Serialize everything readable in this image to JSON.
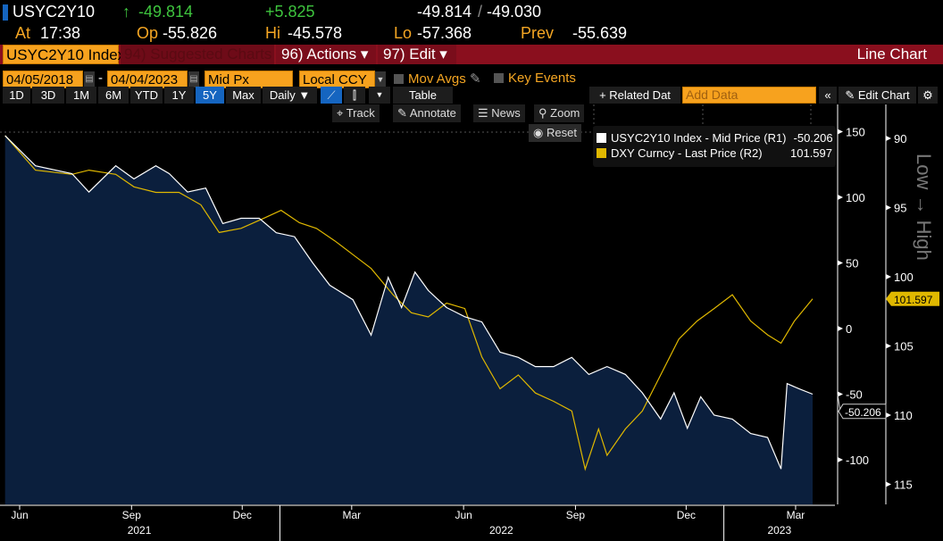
{
  "quote": {
    "ticker": "USYC2Y10",
    "arrow": "↑",
    "last": "-49.814",
    "change": "+5.825",
    "bid": "-49.814",
    "sep": "/",
    "ask": "-49.030",
    "at_label": "At",
    "time": "17:38",
    "op_label": "Op",
    "open": "-55.826",
    "hi_label": "Hi",
    "high": "-45.578",
    "lo_label": "Lo",
    "low": "-57.368",
    "prev_label": "Prev",
    "prev": "-55.639"
  },
  "menu": {
    "security": "USYC2Y10 Index",
    "suggested": "94) Suggested Charts",
    "actions": "96) Actions ▾",
    "edit": "97) Edit ▾",
    "title": "Line Chart"
  },
  "settings": {
    "start_date": "04/05/2018",
    "dash": "-",
    "end_date": "04/04/2023",
    "price": "Mid Px",
    "currency": "Local CCY",
    "mov_avgs": "Mov Avgs",
    "key_events": "Key Events"
  },
  "ranges": [
    "1D",
    "3D",
    "1M",
    "6M",
    "YTD",
    "1Y",
    "5Y",
    "Max"
  ],
  "selected_range": "5Y",
  "period": "Daily ▼",
  "table_label": "Table",
  "related": "+ Related Dat",
  "add_data_placeholder": "Add Data",
  "edit_chart": "✎ Edit Chart",
  "chart_tools": {
    "track": "Track",
    "annotate": "Annotate",
    "news": "News",
    "zoom": "Zoom",
    "reset": "Reset"
  },
  "chart_data": {
    "type": "line",
    "legend": [
      {
        "name": "USYC2Y10 Index - Mid Price (R1)",
        "value": "-50.206",
        "color": "#ffffff"
      },
      {
        "name": "DXY Curncy - Last Price (R2)",
        "value": "101.597",
        "color": "#e0b800"
      }
    ],
    "legend_placement": "top-right",
    "r1_axis": {
      "ticks": [
        "150",
        "100",
        "50",
        "0",
        "-50",
        "-100"
      ],
      "range": [
        -125,
        155
      ]
    },
    "r2_axis": {
      "ticks": [
        "90",
        "95",
        "100",
        "105",
        "110",
        "115"
      ],
      "range": [
        89.5,
        116.5
      ],
      "inverted": true,
      "label": "Low → High"
    },
    "x_ticks": [
      "Jun",
      "Sep",
      "Dec",
      "Mar",
      "Jun",
      "Sep",
      "Dec",
      "Mar"
    ],
    "x_years": [
      "2021",
      "2022",
      "2023"
    ],
    "colors": {
      "area": "#0b1f3d",
      "white": "#ffffff",
      "dxy": "#e0b800"
    },
    "series": [
      {
        "name": "USYC2Y10 Index - Mid Price (R1)",
        "points": [
          [
            "2021-05-20",
            147
          ],
          [
            "2021-06-14",
            124
          ],
          [
            "2021-07-14",
            118
          ],
          [
            "2021-07-28",
            104
          ],
          [
            "2021-08-19",
            124
          ],
          [
            "2021-09-03",
            114
          ],
          [
            "2021-09-21",
            124
          ],
          [
            "2021-10-02",
            118
          ],
          [
            "2021-10-17",
            104
          ],
          [
            "2021-11-01",
            107
          ],
          [
            "2021-11-15",
            80
          ],
          [
            "2021-11-30",
            84
          ],
          [
            "2021-12-15",
            84
          ],
          [
            "2021-12-29",
            73
          ],
          [
            "2022-01-13",
            70
          ],
          [
            "2022-01-28",
            50
          ],
          [
            "2022-02-11",
            33
          ],
          [
            "2022-03-02",
            22
          ],
          [
            "2022-03-17",
            -5
          ],
          [
            "2022-03-31",
            39
          ],
          [
            "2022-04-11",
            16
          ],
          [
            "2022-04-22",
            43
          ],
          [
            "2022-05-03",
            29
          ],
          [
            "2022-05-18",
            16
          ],
          [
            "2022-06-02",
            9
          ],
          [
            "2022-06-16",
            5
          ],
          [
            "2022-07-01",
            -18
          ],
          [
            "2022-07-16",
            -22
          ],
          [
            "2022-07-30",
            -29
          ],
          [
            "2022-08-14",
            -29
          ],
          [
            "2022-08-29",
            -22
          ],
          [
            "2022-09-12",
            -35
          ],
          [
            "2022-09-27",
            -29
          ],
          [
            "2022-10-12",
            -35
          ],
          [
            "2022-10-26",
            -49
          ],
          [
            "2022-11-10",
            -69
          ],
          [
            "2022-11-21",
            -49
          ],
          [
            "2022-12-02",
            -76
          ],
          [
            "2022-12-13",
            -52
          ],
          [
            "2022-12-24",
            -66
          ],
          [
            "2023-01-08",
            -69
          ],
          [
            "2023-01-23",
            -80
          ],
          [
            "2023-02-06",
            -83
          ],
          [
            "2023-02-17",
            -107
          ],
          [
            "2023-02-22",
            -42
          ],
          [
            "2023-03-04",
            -46
          ],
          [
            "2023-03-15",
            -50
          ]
        ]
      },
      {
        "name": "DXY Curncy - Last Price (R2)",
        "points": [
          [
            "2021-05-20",
            89.8
          ],
          [
            "2021-06-14",
            92.3
          ],
          [
            "2021-07-14",
            92.6
          ],
          [
            "2021-07-28",
            92.3
          ],
          [
            "2021-08-19",
            92.6
          ],
          [
            "2021-09-03",
            93.5
          ],
          [
            "2021-09-21",
            93.9
          ],
          [
            "2021-10-10",
            93.9
          ],
          [
            "2021-10-28",
            94.8
          ],
          [
            "2021-11-12",
            96.8
          ],
          [
            "2021-11-30",
            96.5
          ],
          [
            "2021-12-18",
            95.8
          ],
          [
            "2022-01-02",
            95.2
          ],
          [
            "2022-01-17",
            96.1
          ],
          [
            "2022-01-31",
            96.5
          ],
          [
            "2022-02-15",
            97.4
          ],
          [
            "2022-03-02",
            98.4
          ],
          [
            "2022-03-17",
            99.4
          ],
          [
            "2022-04-04",
            101.3
          ],
          [
            "2022-04-19",
            102.6
          ],
          [
            "2022-05-03",
            102.9
          ],
          [
            "2022-05-18",
            101.9
          ],
          [
            "2022-06-02",
            102.3
          ],
          [
            "2022-06-16",
            105.8
          ],
          [
            "2022-07-01",
            108.1
          ],
          [
            "2022-07-16",
            107.1
          ],
          [
            "2022-07-30",
            108.4
          ],
          [
            "2022-08-14",
            109
          ],
          [
            "2022-08-29",
            109.7
          ],
          [
            "2022-09-09",
            113.9
          ],
          [
            "2022-09-20",
            111
          ],
          [
            "2022-09-27",
            112.9
          ],
          [
            "2022-10-12",
            111
          ],
          [
            "2022-10-26",
            109.7
          ],
          [
            "2022-11-10",
            107.1
          ],
          [
            "2022-11-25",
            104.5
          ],
          [
            "2022-12-10",
            103.2
          ],
          [
            "2022-12-24",
            102.3
          ],
          [
            "2023-01-08",
            101.3
          ],
          [
            "2023-01-23",
            103.2
          ],
          [
            "2023-02-06",
            104.2
          ],
          [
            "2023-02-17",
            104.8
          ],
          [
            "2023-02-28",
            103.2
          ],
          [
            "2023-03-15",
            101.6
          ]
        ]
      }
    ]
  }
}
